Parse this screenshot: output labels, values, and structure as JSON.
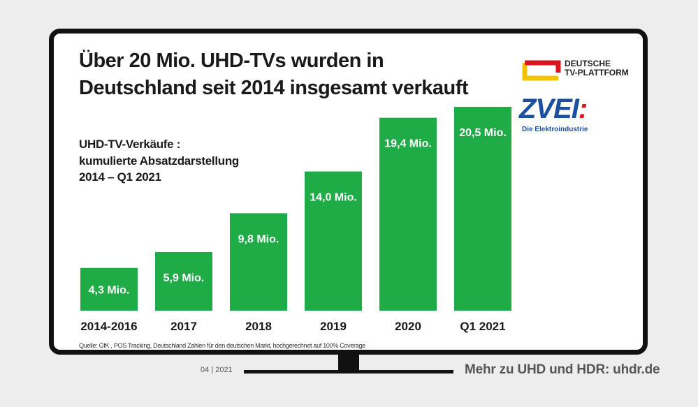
{
  "title_line1": "Über 20 Mio. UHD-TVs wurden in",
  "title_line2": "Deutschland seit 2014 insgesamt verkauft",
  "subtitle_line1": "UHD-TV-Verkäufe :",
  "subtitle_line2": "kumulierte Absatzdarstellung",
  "subtitle_line3": "2014 – Q1 2021",
  "logo_dtv_line1": "DEUTSCHE",
  "logo_dtv_line2": "TV-PLATTFORM",
  "logo_zvei": "ZVEI",
  "logo_zvei_colon": ":",
  "logo_zvei_sub": "Die Elektroindustrie",
  "source": "Quelle: GfK , POS Tracking, Deutschland Zahlen für den deutschen Markt, hochgerechnet auf 100% Coverage",
  "date": "04 | 2021",
  "footer": "Mehr zu UHD und HDR: uhdr.de",
  "colors": {
    "bar": "#1fab46",
    "zvei_blue": "#1b4fa0",
    "zvei_red": "#d9161e"
  },
  "chart_data": {
    "type": "bar",
    "categories": [
      "2014-2016",
      "2017",
      "2018",
      "2019",
      "2020",
      "Q1 2021"
    ],
    "values": [
      4.3,
      5.9,
      9.8,
      14.0,
      19.4,
      20.5
    ],
    "value_labels": [
      "4,3 Mio.",
      "5,9 Mio.",
      "9,8 Mio.",
      "14,0 Mio.",
      "19,4 Mio.",
      "20,5 Mio."
    ],
    "unit": "Mio.",
    "ylim": [
      0,
      20.5
    ],
    "grid": false,
    "legend": "none"
  }
}
